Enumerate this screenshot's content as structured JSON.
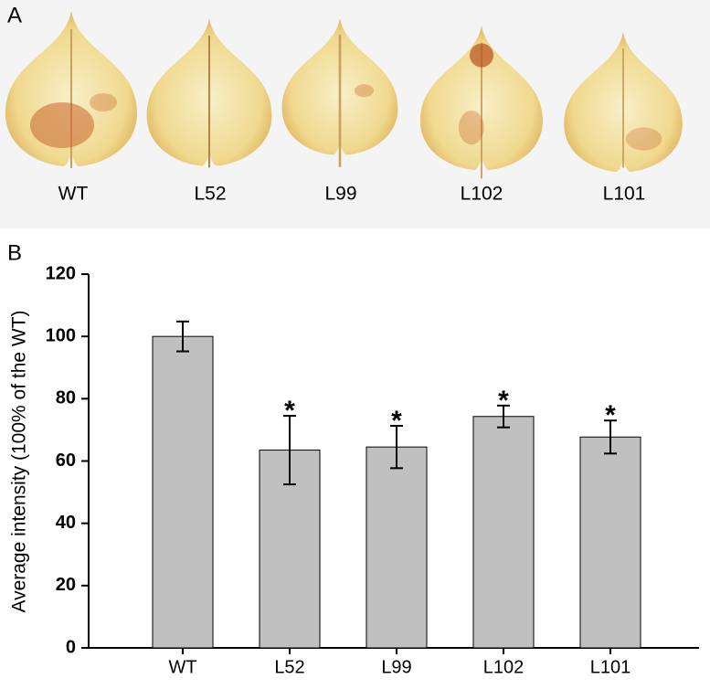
{
  "panel_labels": [
    "A",
    "B"
  ],
  "leaf_labels": [
    "WT",
    "L52",
    "L99",
    "L102",
    "L101"
  ],
  "chart_data": {
    "type": "bar",
    "y_label": "Average intensity (100% of the WT)",
    "categories": [
      "WT",
      "L52",
      "L99",
      "L102",
      "L101"
    ],
    "values": [
      100,
      63.5,
      64.5,
      74.3,
      67.7
    ],
    "errors": [
      4.8,
      11,
      6.8,
      3.5,
      5.3
    ],
    "annotations": [
      null,
      "*",
      "*",
      "*",
      "*"
    ],
    "color": "#c0c0c0",
    "ylim": [
      0,
      120
    ],
    "yticks": [
      0,
      20,
      40,
      60,
      80,
      100,
      120
    ],
    "grid": false
  }
}
